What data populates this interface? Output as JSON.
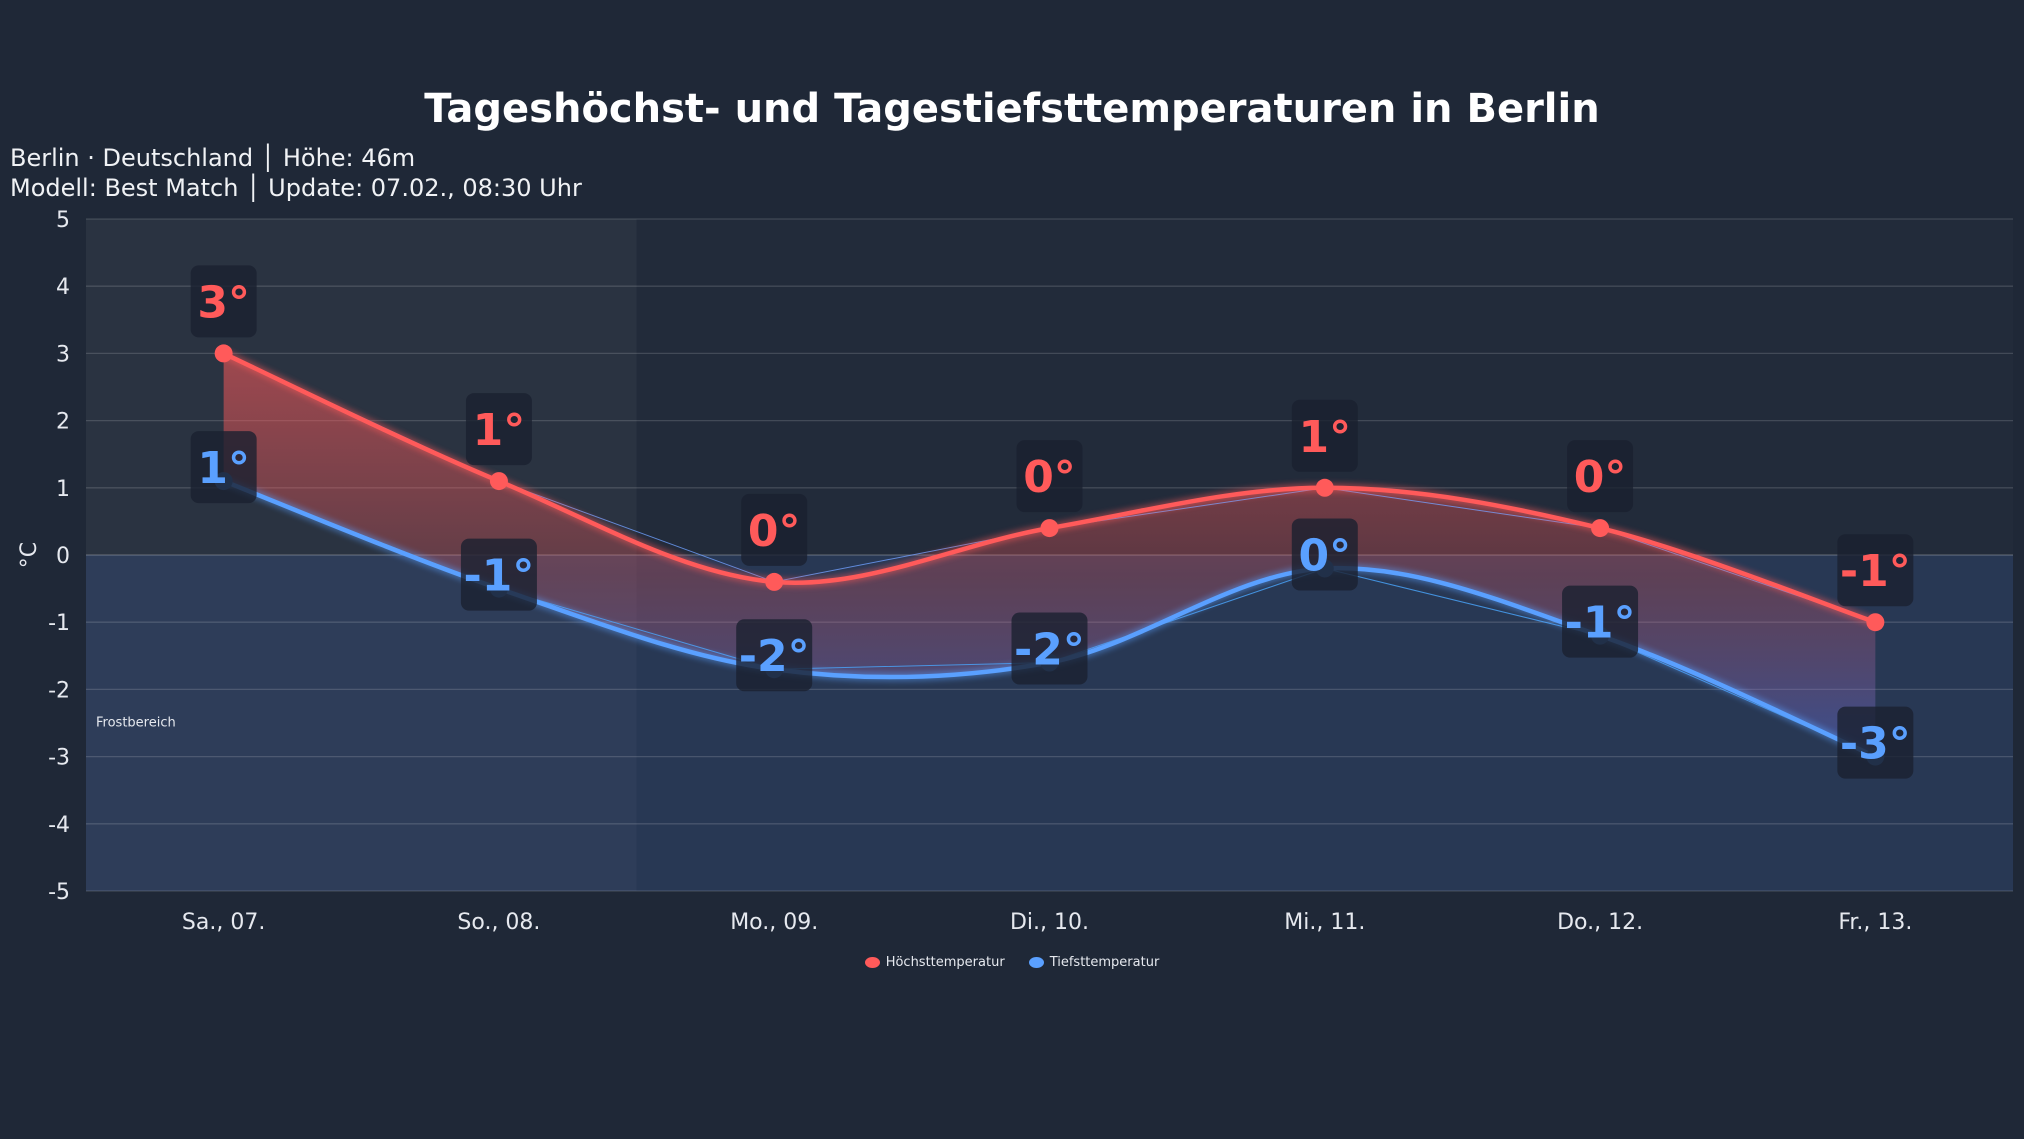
{
  "chart_data": {
    "type": "line",
    "title": "Tageshöchst- und Tagestiefsttemperaturen in Berlin",
    "subtitle_lines": [
      "Berlin · Deutschland │ Höhe: 46m",
      "Modell: Best Match │ Update: 07.02., 08:30 Uhr"
    ],
    "ylabel": "°C",
    "xlabel": "",
    "ylim": [
      -5,
      5
    ],
    "yticks": [
      "5",
      "4",
      "3",
      "2",
      "1",
      "0",
      "-1",
      "-2",
      "-3",
      "-4",
      "-5"
    ],
    "categories": [
      "Sa., 07.",
      "So., 08.",
      "Mo., 09.",
      "Di., 10.",
      "Mi., 11.",
      "Do., 12.",
      "Fr., 13."
    ],
    "grid": true,
    "legend_position": "bottom",
    "weekend_shaded": [
      "Sa., 07.",
      "So., 08."
    ],
    "annotation": "Frostbereich",
    "series": [
      {
        "name": "Höchsttemperatur",
        "color": "#ff5a5a",
        "values": [
          3.0,
          1.1,
          -0.4,
          0.4,
          1.0,
          0.4,
          -1.0
        ],
        "labels": [
          "3°",
          "1°",
          "0°",
          "0°",
          "1°",
          "0°",
          "-1°"
        ]
      },
      {
        "name": "Tiefsttemperatur",
        "color": "#5aa0ff",
        "values": [
          1.1,
          -0.5,
          -1.7,
          -1.6,
          -0.2,
          -1.2,
          -3.0
        ],
        "labels": [
          "1°",
          "-1°",
          "-2°",
          "-2°",
          "0°",
          "-1°",
          "-3°"
        ]
      }
    ]
  }
}
